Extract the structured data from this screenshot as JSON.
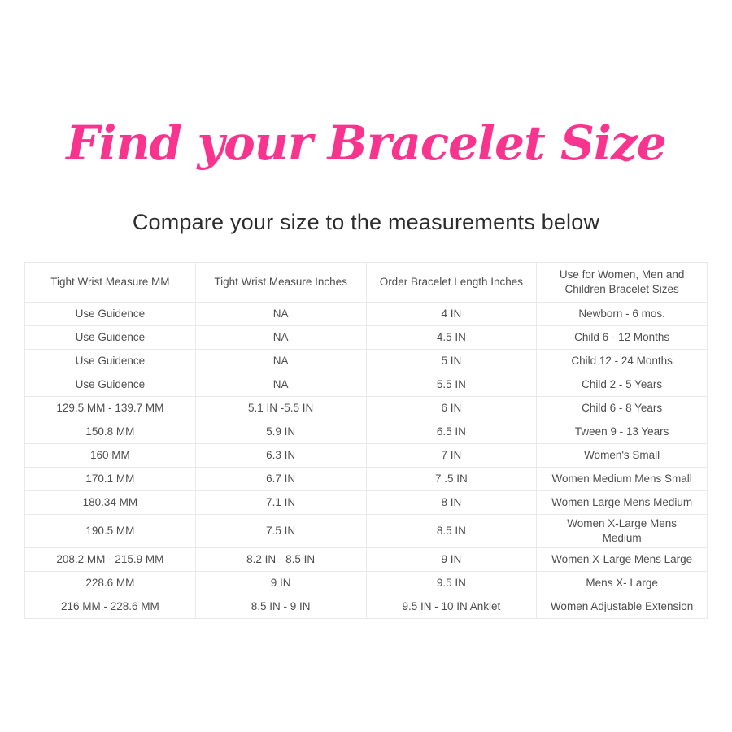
{
  "page": {
    "title": "Find your Bracelet Size",
    "subtitle": "Compare your size to the measurements below",
    "title_color": "#f9348e",
    "background_color": "#ffffff",
    "table_text_color": "#4e4e4e",
    "table_border_color": "#e9e9e9"
  },
  "chart_data": {
    "type": "table",
    "title": "Find your Bracelet Size",
    "subtitle": "Compare your size to the measurements below",
    "columns": [
      "Tight Wrist Measure MM",
      "Tight Wrist Measure Inches",
      "Order Bracelet Length Inches",
      "Use for Women, Men and Children Bracelet Sizes"
    ],
    "rows": [
      [
        "Use Guidence",
        "NA",
        "4 IN",
        "Newborn - 6 mos."
      ],
      [
        "Use Guidence",
        "NA",
        "4.5 IN",
        "Child 6 - 12 Months"
      ],
      [
        "Use Guidence",
        "NA",
        "5 IN",
        "Child 12 - 24 Months"
      ],
      [
        "Use Guidence",
        "NA",
        "5.5 IN",
        "Child 2 - 5 Years"
      ],
      [
        "129.5 MM - 139.7 MM",
        "5.1 IN -5.5 IN",
        "6 IN",
        "Child 6 - 8 Years"
      ],
      [
        "150.8 MM",
        "5.9 IN",
        "6.5 IN",
        "Tween 9 - 13 Years"
      ],
      [
        "160 MM",
        "6.3 IN",
        "7 IN",
        "Women's Small"
      ],
      [
        "170.1 MM",
        "6.7 IN",
        "7 .5 IN",
        "Women Medium Mens Small"
      ],
      [
        "180.34 MM",
        "7.1 IN",
        "8 IN",
        "Women Large Mens Medium"
      ],
      [
        "190.5 MM",
        "7.5 IN",
        "8.5 IN",
        "Women X-Large Mens Medium"
      ],
      [
        "208.2 MM - 215.9 MM",
        "8.2 IN - 8.5 IN",
        "9 IN",
        "Women X-Large Mens Large"
      ],
      [
        "228.6 MM",
        "9 IN",
        "9.5 IN",
        "Mens X- Large"
      ],
      [
        "216 MM - 228.6 MM",
        "8.5 IN - 9 IN",
        "9.5 IN - 10 IN Anklet",
        "Women Adjustable Extension"
      ]
    ]
  }
}
